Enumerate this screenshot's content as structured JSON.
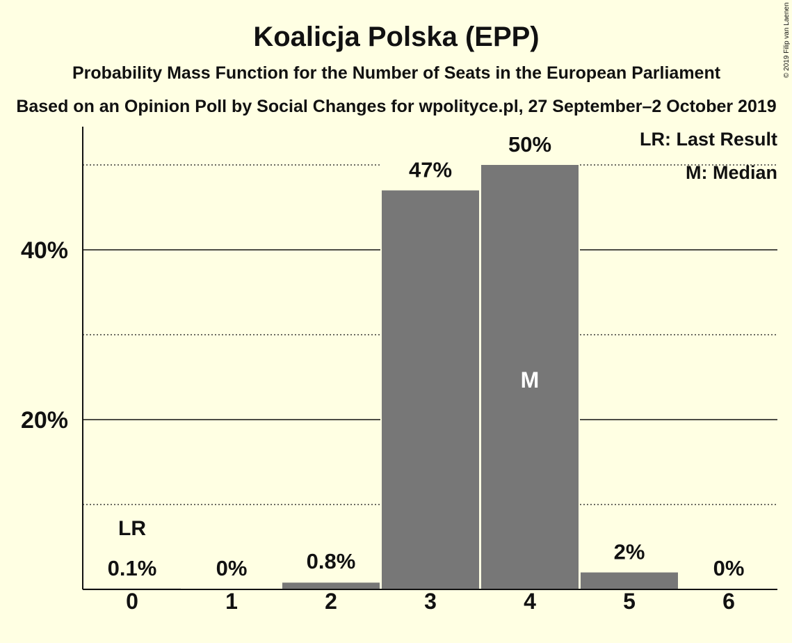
{
  "chart_data": {
    "type": "bar",
    "title": "Koalicja Polska (EPP)",
    "subtitle": "Probability Mass Function for the Number of Seats in the European Parliament",
    "subtitle2": "Based on an Opinion Poll by Social Changes for wpolityce.pl, 27 September–2 October 2019",
    "categories": [
      "0",
      "1",
      "2",
      "3",
      "4",
      "5",
      "6"
    ],
    "values": [
      0.1,
      0,
      0.8,
      47,
      50,
      2,
      0
    ],
    "value_labels": [
      "0.1%",
      "0%",
      "0.8%",
      "47%",
      "50%",
      "2%",
      "0%"
    ],
    "ylim": [
      0,
      54
    ],
    "yticks": [
      {
        "value": 20,
        "label": "20%"
      },
      {
        "value": 40,
        "label": "40%"
      }
    ],
    "minor_gridlines": [
      10,
      30,
      50
    ],
    "last_result": {
      "category": "0",
      "marker": "LR"
    },
    "median": {
      "category": "4",
      "marker": "M"
    },
    "legend": [
      "LR: Last Result",
      "M: Median"
    ],
    "legend_position": "top-right",
    "copyright": "© 2019 Filip van Laenen",
    "colors": {
      "background": "#ffffe3",
      "bar": "#777777",
      "text": "#111111"
    }
  }
}
